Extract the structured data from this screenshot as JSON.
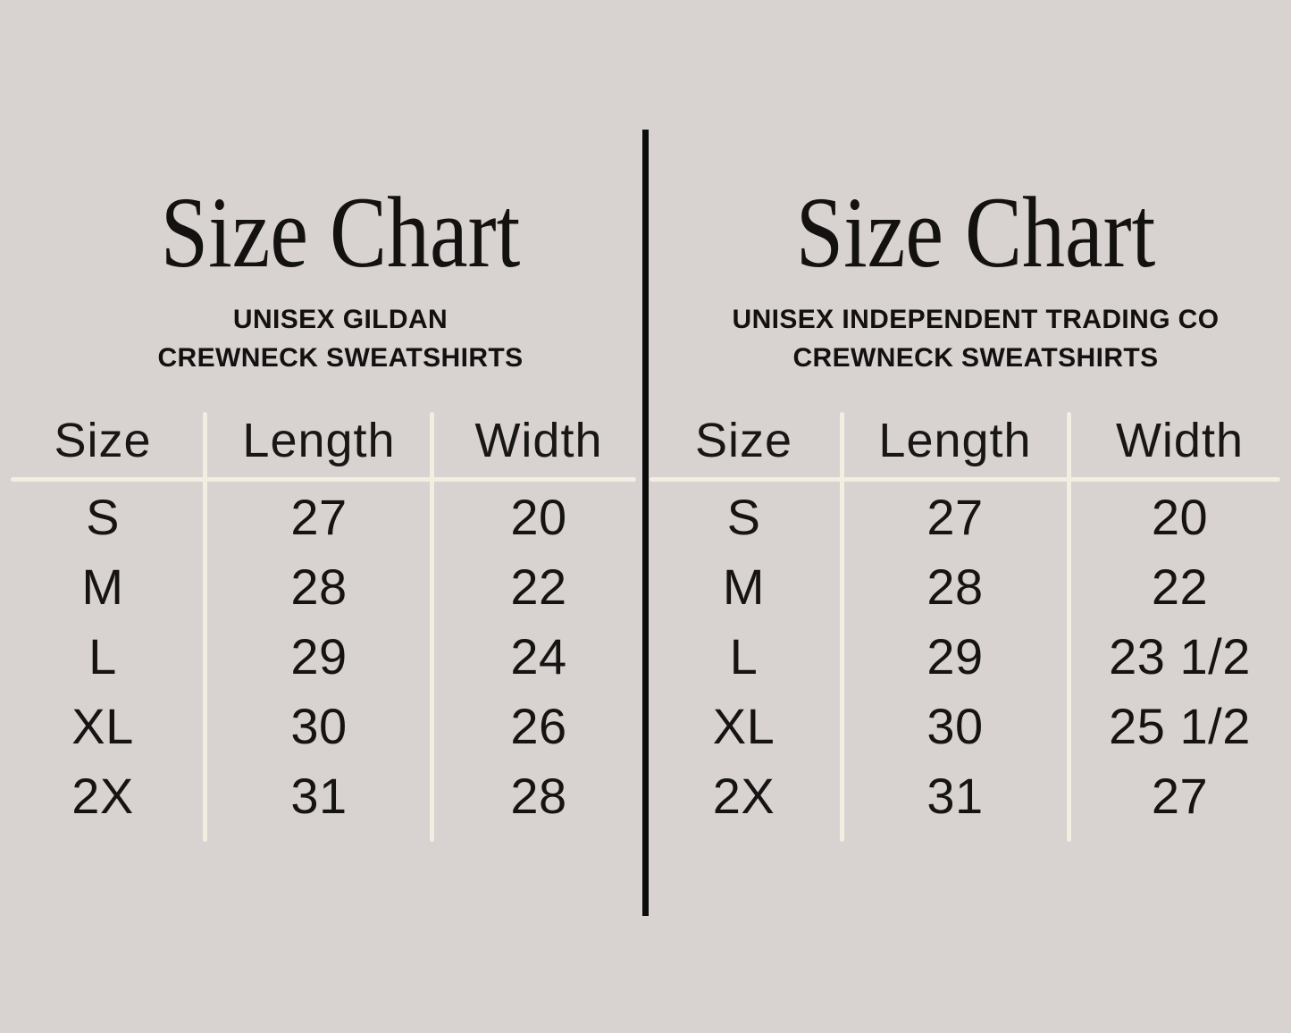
{
  "colors": {
    "background": "#d8d2d1",
    "grid_line": "#f2efe2",
    "text": "#161412",
    "divider": "#0c0c0c"
  },
  "chart_data": [
    {
      "type": "table",
      "title": "Size Chart",
      "subtitle_lines": [
        "UNISEX GILDAN",
        "CREWNECK SWEATSHIRTS"
      ],
      "columns": [
        "Size",
        "Length",
        "Width"
      ],
      "rows": [
        [
          "S",
          "27",
          "20"
        ],
        [
          "M",
          "28",
          "22"
        ],
        [
          "L",
          "29",
          "24"
        ],
        [
          "XL",
          "30",
          "26"
        ],
        [
          "2X",
          "31",
          "28"
        ]
      ]
    },
    {
      "type": "table",
      "title": "Size Chart",
      "subtitle_lines": [
        "UNISEX INDEPENDENT TRADING CO",
        "CREWNECK SWEATSHIRTS"
      ],
      "columns": [
        "Size",
        "Length",
        "Width"
      ],
      "rows": [
        [
          "S",
          "27",
          "20"
        ],
        [
          "M",
          "28",
          "22"
        ],
        [
          "L",
          "29",
          "23 1/2"
        ],
        [
          "XL",
          "30",
          "25 1/2"
        ],
        [
          "2X",
          "31",
          "27"
        ]
      ]
    }
  ]
}
